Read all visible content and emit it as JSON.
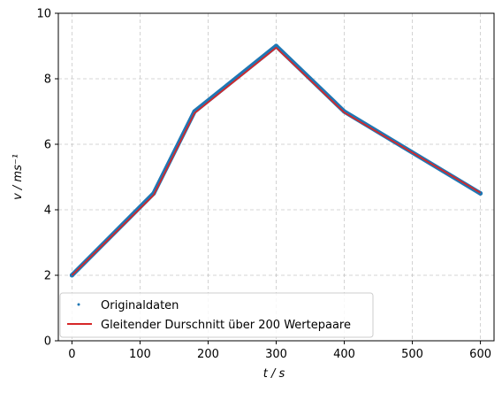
{
  "chart_data": {
    "type": "line",
    "xlabel": "t / s",
    "ylabel": "v / ms⁻¹",
    "xlim": [
      -20,
      620
    ],
    "ylim": [
      0,
      10
    ],
    "xticks": [
      0,
      100,
      200,
      300,
      400,
      500,
      600
    ],
    "yticks": [
      0,
      2,
      4,
      6,
      8,
      10
    ],
    "grid": true,
    "grid_style": "dashed",
    "legend_position": "lower-left",
    "series": [
      {
        "name": "Originaldaten",
        "kind": "scatter",
        "color": "#1f77b4",
        "x": [
          0,
          120,
          180,
          300,
          400,
          600
        ],
        "y": [
          2.0,
          4.5,
          7.0,
          9.0,
          7.0,
          4.5
        ]
      },
      {
        "name": "Gleitender Durschnitt über 200 Wertepaare",
        "kind": "line",
        "color": "#d62728",
        "x": [
          0,
          120,
          180,
          300,
          400,
          600
        ],
        "y": [
          2.0,
          4.45,
          6.95,
          8.95,
          6.97,
          4.52
        ]
      }
    ]
  }
}
